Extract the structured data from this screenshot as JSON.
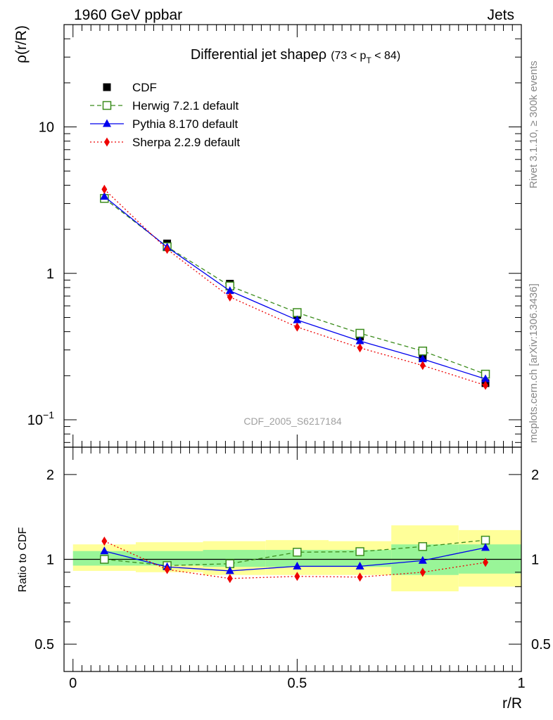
{
  "header": {
    "left": "1960 GeV ppbar",
    "right": "Jets"
  },
  "side": {
    "rivet": "Rivet 3.1.10, ≥ 300k events",
    "source": "mcplots.cern.ch [arXiv:1306.3436]"
  },
  "chart_data": {
    "type": "line",
    "title_main": "Differential jet shapeρ",
    "title_cut_open": "(73 < p",
    "title_cut_sub": "T",
    "title_cut_close": " < 84)",
    "watermark": "CDF_2005_S6217184",
    "xlabel": "r/R",
    "ylabel": "ρ(r/R)",
    "ratio_ylabel": "Ratio to CDF",
    "xlim": [
      -0.02,
      1.0
    ],
    "ylim": [
      0.065,
      50
    ],
    "yscale": "log",
    "ratio_ylim": [
      0.4,
      2.5
    ],
    "ratio_yscale": "log",
    "x_ticks": [
      {
        "value": 0,
        "label": "0"
      },
      {
        "value": 0.5,
        "label": "0.5"
      },
      {
        "value": 1,
        "label": "1"
      }
    ],
    "y_ticks": [
      {
        "value": 0.1,
        "label": "10",
        "sup": "−1"
      },
      {
        "value": 1,
        "label": "1",
        "sup": ""
      },
      {
        "value": 10,
        "label": "10",
        "sup": ""
      }
    ],
    "ratio_ticks": [
      {
        "value": 0.5,
        "label": "0.5"
      },
      {
        "value": 1,
        "label": "1"
      },
      {
        "value": 2,
        "label": "2"
      }
    ],
    "x": [
      0.07,
      0.21,
      0.35,
      0.5,
      0.64,
      0.78,
      0.92
    ],
    "bin_edges": [
      0,
      0.14,
      0.29,
      0.43,
      0.57,
      0.71,
      0.86,
      1.0
    ],
    "series": [
      {
        "name": "CDF",
        "key": "cdf",
        "color": "#000000",
        "marker": "square-filled",
        "dash": "",
        "values": [
          3.25,
          1.6,
          0.85,
          0.52,
          0.37,
          0.265,
          0.178
        ]
      },
      {
        "name": "Herwig 7.2.1 default",
        "key": "herwig",
        "color": "#3b8c1c",
        "marker": "square-open",
        "dash": "6,4",
        "values": [
          3.25,
          1.52,
          0.82,
          0.54,
          0.39,
          0.295,
          0.205
        ],
        "ratio": [
          1.0,
          0.95,
          0.965,
          1.06,
          1.065,
          1.11,
          1.17
        ]
      },
      {
        "name": "Pythia 8.170 default",
        "key": "pythia",
        "color": "#0000ee",
        "marker": "triangle",
        "dash": "",
        "values": [
          3.35,
          1.51,
          0.76,
          0.48,
          0.345,
          0.26,
          0.19
        ],
        "ratio": [
          1.07,
          0.94,
          0.91,
          0.945,
          0.945,
          0.99,
          1.1
        ]
      },
      {
        "name": "Sherpa 2.2.9 default",
        "key": "sherpa",
        "color": "#ee0000",
        "marker": "diamond",
        "dash": "2,3",
        "values": [
          3.75,
          1.46,
          0.69,
          0.43,
          0.31,
          0.235,
          0.172
        ],
        "ratio": [
          1.16,
          0.92,
          0.855,
          0.87,
          0.865,
          0.9,
          0.975
        ]
      }
    ],
    "band_inner": [
      [
        0.95,
        1.07
      ],
      [
        0.95,
        1.07
      ],
      [
        0.94,
        1.08
      ],
      [
        0.94,
        1.08
      ],
      [
        0.94,
        1.08
      ],
      [
        0.88,
        1.13
      ],
      [
        0.89,
        1.13
      ]
    ],
    "band_outer": [
      [
        0.91,
        1.13
      ],
      [
        0.9,
        1.15
      ],
      [
        0.88,
        1.16
      ],
      [
        0.88,
        1.17
      ],
      [
        0.88,
        1.16
      ],
      [
        0.77,
        1.32
      ],
      [
        0.8,
        1.27
      ]
    ]
  }
}
